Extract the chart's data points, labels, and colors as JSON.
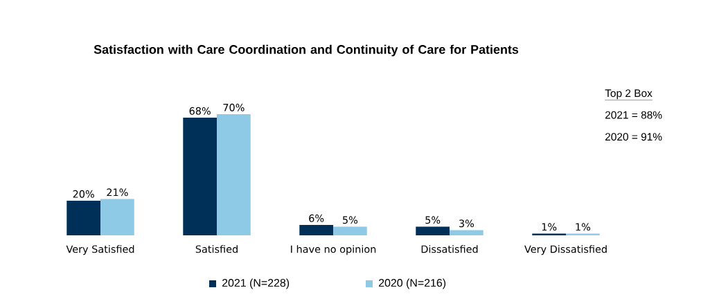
{
  "chart_data": {
    "type": "bar",
    "title": "Satisfaction with Care Coordination and Continuity of Care for Patients",
    "categories": [
      "Very Satisfied",
      "Satisfied",
      "I have no opinion",
      "Dissatisfied",
      "Very Dissatisfied"
    ],
    "series": [
      {
        "name": "2021 (N=228)",
        "color": "#003057",
        "values": [
          20,
          68,
          6,
          5,
          1
        ],
        "value_labels": [
          "20%",
          "68%",
          "6%",
          "5%",
          "1%"
        ]
      },
      {
        "name": "2020 (N=216)",
        "color": "#8ecae6",
        "values": [
          21,
          70,
          5,
          3,
          1
        ],
        "value_labels": [
          "21%",
          "70%",
          "5%",
          "3%",
          "1%"
        ]
      }
    ],
    "annotations": [
      "Top 2 Box",
      "2021 = 88%",
      "2020 = 91%"
    ],
    "legend": "bottom"
  }
}
